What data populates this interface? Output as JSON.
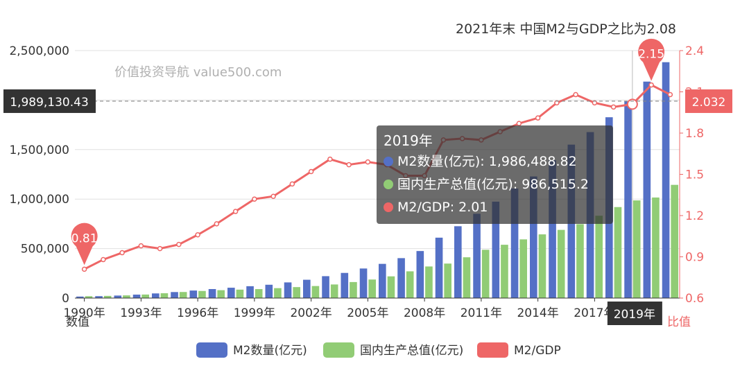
{
  "colors": {
    "m2": "#5470c6",
    "gdp": "#91cc75",
    "ratio": "#ee6666",
    "axis": "#333333"
  },
  "chart_data": {
    "type": "bar",
    "title": "2021年末 中国M2与GDP之比为2.08",
    "watermark": "价值投资导航 value500.com",
    "x": [
      1990,
      1991,
      1992,
      1993,
      1994,
      1995,
      1996,
      1997,
      1998,
      1999,
      2000,
      2001,
      2002,
      2003,
      2004,
      2005,
      2006,
      2007,
      2008,
      2009,
      2010,
      2011,
      2012,
      2013,
      2014,
      2015,
      2016,
      2017,
      2018,
      2019,
      2020,
      2021
    ],
    "x_tick_labels": [
      "1990年",
      "1993年",
      "1996年",
      "1999年",
      "2002年",
      "2005年",
      "2008年",
      "2011年",
      "2014年",
      "2017年"
    ],
    "y_left": {
      "label": "数值",
      "range": [
        0,
        2500000
      ],
      "ticks": [
        "0",
        "500,000",
        "1,000,000",
        "1,500,000",
        "2,000,000",
        "2,500,000"
      ]
    },
    "y_right": {
      "label": "比值",
      "range": [
        0.6,
        2.4
      ],
      "ticks": [
        "0.6",
        "0.9",
        "1.2",
        "1.5",
        "1.8",
        "2.1",
        "2.4"
      ]
    },
    "series": [
      {
        "name": "M2数量(亿元)",
        "type": "bar",
        "axis": "left",
        "values": [
          15293,
          19350,
          25402,
          34880,
          46924,
          60751,
          76095,
          90995,
          104499,
          119898,
          134610,
          158302,
          185007,
          221223,
          254107,
          298756,
          345578,
          403442,
          475167,
          610225,
          725852,
          851590,
          974149,
          1106525,
          1228375,
          1392278,
          1550067,
          1676769,
          1826744,
          1986489,
          2186796,
          2382900
        ]
      },
      {
        "name": "国内生产总值(亿元)",
        "type": "bar",
        "axis": "left",
        "values": [
          18873,
          22006,
          27195,
          35673,
          48638,
          61340,
          71814,
          79715,
          85196,
          90564,
          100280,
          110863,
          121717,
          137422,
          161840,
          187319,
          219439,
          270092,
          319245,
          348518,
          412119,
          487940,
          538580,
          592963,
          643563,
          688858,
          746395,
          832036,
          919281,
          986515,
          1015986,
          1143670
        ]
      },
      {
        "name": "M2/GDP",
        "type": "line",
        "axis": "right",
        "values": [
          0.81,
          0.88,
          0.93,
          0.98,
          0.96,
          0.99,
          1.06,
          1.14,
          1.23,
          1.32,
          1.34,
          1.43,
          1.52,
          1.61,
          1.57,
          1.59,
          1.57,
          1.49,
          1.49,
          1.75,
          1.76,
          1.75,
          1.81,
          1.87,
          1.91,
          2.02,
          2.08,
          2.02,
          1.99,
          2.01,
          2.15,
          2.08
        ]
      }
    ],
    "legend_position": "bottom",
    "grid": true,
    "markers": [
      {
        "label": "0.81",
        "index": 0
      },
      {
        "label": "2.15",
        "index": 30
      }
    ],
    "axis_pointer": {
      "y_left_label": "1,989,130.43",
      "y_right_label": "2.032",
      "x_label": "2019年"
    }
  },
  "tooltip": {
    "title": "2019年",
    "rows": [
      {
        "text": "M2数量(亿元): 1,986,488.82",
        "color": "#5470c6"
      },
      {
        "text": "国内生产总值(亿元): 986,515.2",
        "color": "#91cc75"
      },
      {
        "text": "M2/GDP: 2.01",
        "color": "#ee6666"
      }
    ]
  },
  "legend": {
    "items": [
      {
        "label": "M2数量(亿元)",
        "color": "#5470c6"
      },
      {
        "label": "国内生产总值(亿元)",
        "color": "#91cc75"
      },
      {
        "label": "M2/GDP",
        "color": "#ee6666"
      }
    ]
  }
}
